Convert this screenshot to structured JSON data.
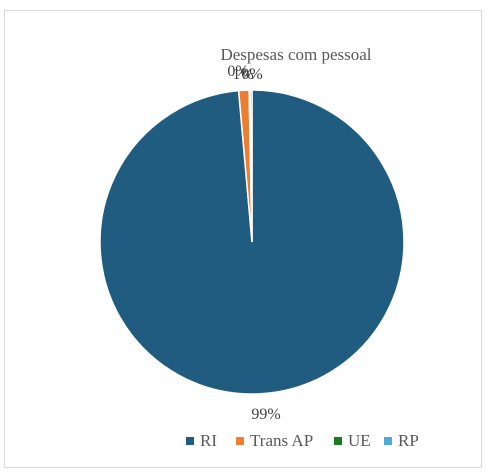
{
  "chart_data": {
    "type": "pie",
    "title": "Despesas com pessoal",
    "categories": [
      "RI",
      "Trans AP",
      "UE",
      "RP"
    ],
    "values": [
      98.6,
      1.1,
      0.1,
      0.2
    ],
    "colors": [
      "#1F5C80",
      "#ED7D31",
      "#1E7A1E",
      "#4FA9DB"
    ],
    "data_labels": [
      "99%",
      "1%",
      "0%",
      "0%"
    ],
    "legend_position": "bottom"
  }
}
